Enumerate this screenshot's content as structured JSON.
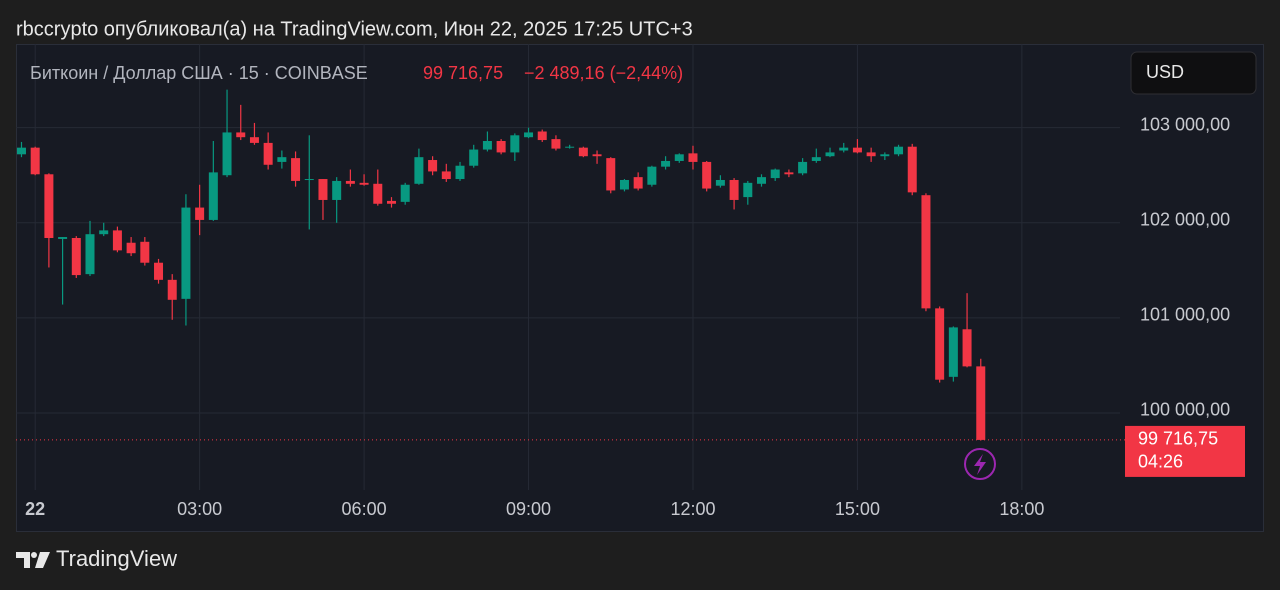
{
  "header": {
    "text": "rbccrypto опубликовал(а) на TradingView.com, Июн 22, 2025 17:25 UTC+3"
  },
  "chart_data": {
    "type": "candlestick",
    "symbol": "Биткоин / Доллар США · 15 · COINBASE",
    "last_label": "99 716,75",
    "change_label": "−2 489,16 (−2,44%)",
    "currency": "USD",
    "countdown": "04:26",
    "last_price": 99716.75,
    "up_color": "#089981",
    "down_color": "#f23645",
    "grid": true,
    "xlim": [
      -0.35,
      19.79
    ],
    "ylim": [
      99190,
      103880
    ],
    "xticks": [
      {
        "value": 0,
        "label": "22"
      },
      {
        "value": 3,
        "label": "03:00"
      },
      {
        "value": 6,
        "label": "06:00"
      },
      {
        "value": 9,
        "label": "09:00"
      },
      {
        "value": 12,
        "label": "12:00"
      },
      {
        "value": 15,
        "label": "15:00"
      },
      {
        "value": 18,
        "label": "18:00"
      }
    ],
    "yticks": [
      {
        "value": 100000,
        "label": "100 000,00"
      },
      {
        "value": 101000,
        "label": "101 000,00"
      },
      {
        "value": 102000,
        "label": "102 000,00"
      },
      {
        "value": 103000,
        "label": "103 000,00"
      }
    ],
    "x": [
      -0.25,
      0,
      0.25,
      0.5,
      0.75,
      1,
      1.25,
      1.5,
      1.75,
      2,
      2.25,
      2.5,
      2.75,
      3,
      3.25,
      3.5,
      3.75,
      4,
      4.25,
      4.5,
      4.75,
      5,
      5.25,
      5.5,
      5.75,
      6,
      6.25,
      6.5,
      6.75,
      7,
      7.25,
      7.5,
      7.75,
      8,
      8.25,
      8.5,
      8.75,
      9,
      9.25,
      9.5,
      9.75,
      10,
      10.25,
      10.5,
      10.75,
      11,
      11.25,
      11.5,
      11.75,
      12,
      12.25,
      12.5,
      12.75,
      13,
      13.25,
      13.5,
      13.75,
      14,
      14.25,
      14.5,
      14.75,
      15,
      15.25,
      15.5,
      15.75,
      16,
      16.25,
      16.5,
      16.75,
      17,
      17.25
    ],
    "open": [
      102720,
      102790,
      102510,
      101830,
      101840,
      101460,
      101880,
      101920,
      101790,
      101800,
      101580,
      101400,
      101200,
      102160,
      102030,
      102500,
      102950,
      102900,
      102840,
      102640,
      102680,
      102450,
      102460,
      102240,
      102440,
      102420,
      102410,
      102230,
      102220,
      102410,
      102660,
      102540,
      102460,
      102600,
      102770,
      102860,
      102740,
      102900,
      102960,
      102880,
      102790,
      102790,
      102720,
      102680,
      102350,
      102480,
      102400,
      102590,
      102650,
      102730,
      102640,
      102390,
      102450,
      102270,
      102410,
      102470,
      102530,
      102520,
      102650,
      102700,
      102760,
      102790,
      102740,
      102700,
      102720,
      102800,
      102290,
      101100,
      100380,
      100880,
      100490
    ],
    "high": [
      102850,
      102800,
      102520,
      101850,
      101860,
      102020,
      102000,
      101960,
      101850,
      101850,
      101620,
      101460,
      102300,
      102400,
      102860,
      103400,
      103240,
      103050,
      102950,
      102760,
      102750,
      102920,
      102460,
      102480,
      102560,
      102510,
      102560,
      102270,
      102420,
      102780,
      102700,
      102620,
      102640,
      102820,
      102960,
      102880,
      102940,
      103000,
      102980,
      102920,
      102820,
      102800,
      102760,
      102690,
      102460,
      102530,
      102600,
      102700,
      102730,
      102810,
      102650,
      102500,
      102470,
      102440,
      102510,
      102570,
      102560,
      102680,
      102780,
      102790,
      102840,
      102880,
      102790,
      102740,
      102820,
      102830,
      102310,
      101120,
      100910,
      101260,
      100570
    ],
    "low": [
      102690,
      102500,
      101530,
      101140,
      101420,
      101440,
      101860,
      101690,
      101650,
      101550,
      101360,
      100980,
      100920,
      101870,
      102020,
      102480,
      102870,
      102820,
      102560,
      102570,
      102380,
      101930,
      102030,
      102000,
      102380,
      102390,
      102180,
      102160,
      102190,
      102400,
      102500,
      102430,
      102440,
      102580,
      102750,
      102720,
      102650,
      102890,
      102850,
      102760,
      102780,
      102690,
      102620,
      102310,
      102330,
      102340,
      102380,
      102560,
      102630,
      102560,
      102330,
      102370,
      102140,
      102190,
      102380,
      102440,
      102480,
      102500,
      102630,
      102690,
      102740,
      102730,
      102640,
      102660,
      102700,
      102290,
      101070,
      100320,
      100330,
      100480,
      99710
    ],
    "close": [
      102790,
      102510,
      101840,
      101850,
      101450,
      101880,
      101920,
      101710,
      101680,
      101580,
      101400,
      101190,
      102160,
      102030,
      102530,
      102950,
      102900,
      102840,
      102610,
      102690,
      102440,
      102460,
      102240,
      102440,
      102410,
      102400,
      102200,
      102200,
      102400,
      102690,
      102540,
      102460,
      102600,
      102770,
      102860,
      102740,
      102920,
      102950,
      102870,
      102780,
      102800,
      102700,
      102700,
      102340,
      102450,
      102360,
      102590,
      102650,
      102720,
      102640,
      102360,
      102450,
      102240,
      102420,
      102480,
      102560,
      102510,
      102640,
      102690,
      102740,
      102790,
      102740,
      102700,
      102720,
      102800,
      102320,
      101100,
      100350,
      100900,
      100490,
      99716.75
    ]
  },
  "footer": {
    "brand": "TradingView"
  }
}
